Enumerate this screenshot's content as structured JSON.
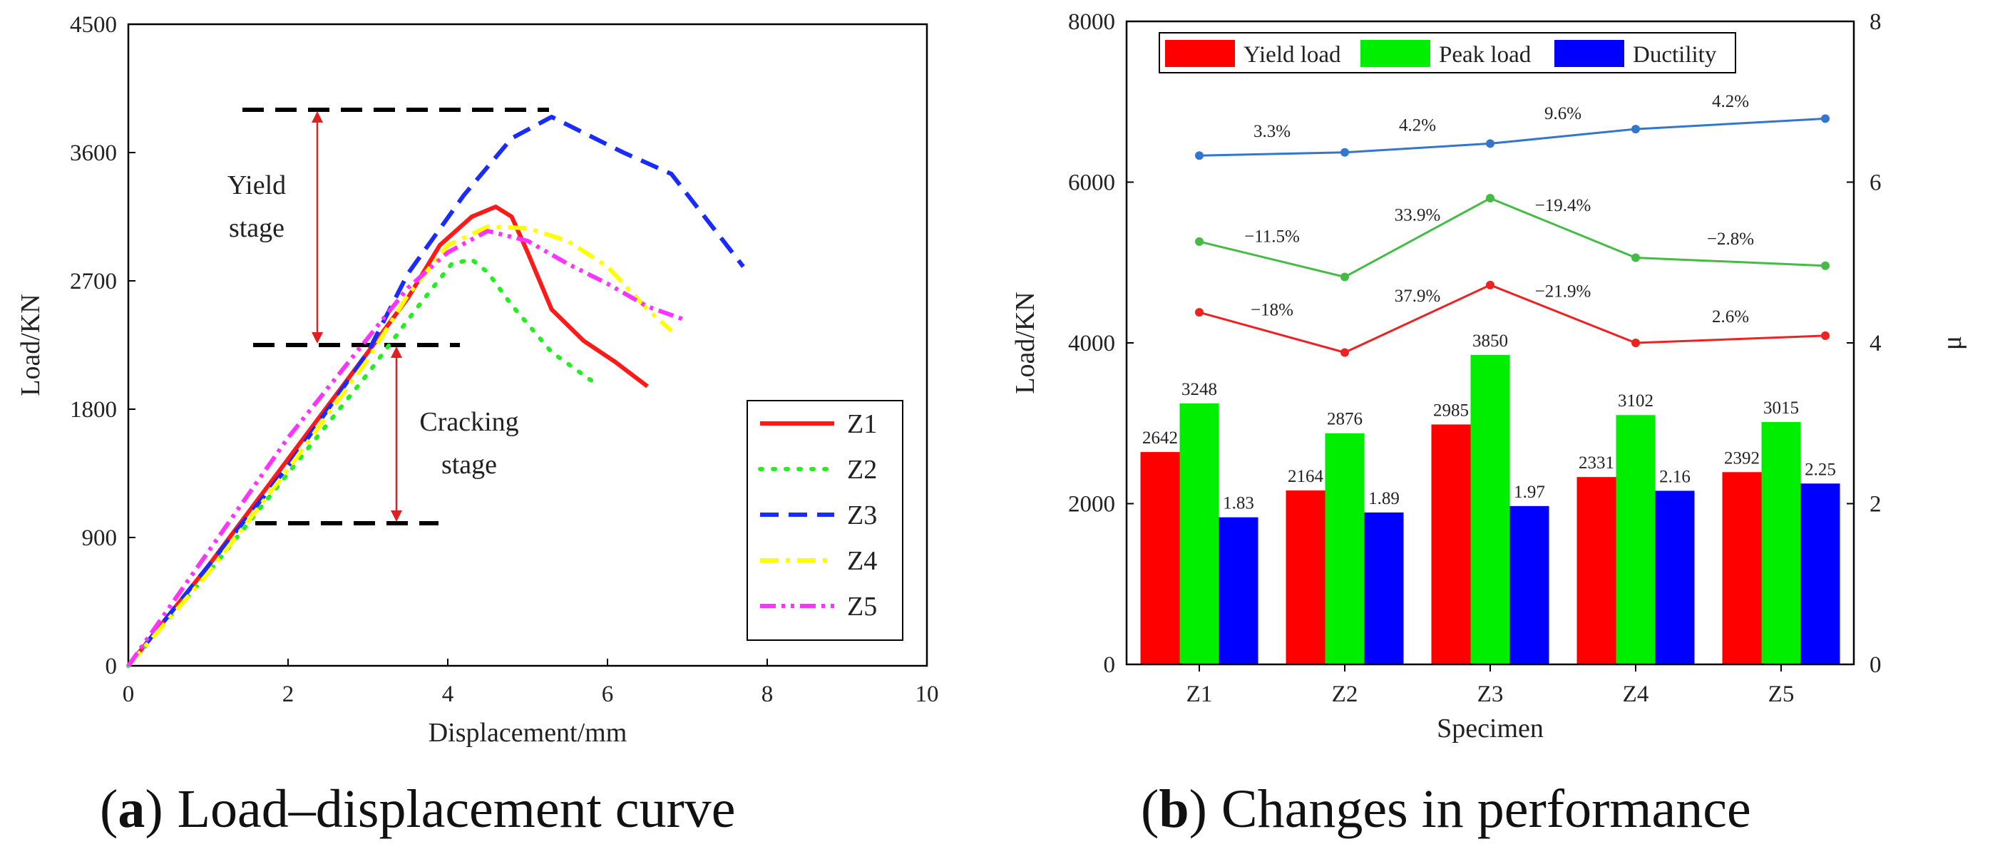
{
  "captions": {
    "a": {
      "letter": "a",
      "text": "Load–displacement curve"
    },
    "b": {
      "letter": "b",
      "text": "Changes in performance"
    }
  },
  "annotations": {
    "yield": [
      "Yield",
      "stage"
    ],
    "cracking": [
      "Cracking",
      "stage"
    ],
    "yield_top_load": 3900,
    "yield_bottom_load": 2250,
    "cracking_bottom_load": 1000
  },
  "chart_data": [
    {
      "type": "line",
      "title": "",
      "xlabel": "Displacement/mm",
      "ylabel": "Load/KN",
      "xlim": [
        0,
        10
      ],
      "ylim": [
        0,
        4500
      ],
      "xticks": [
        0,
        2,
        4,
        6,
        8,
        10
      ],
      "yticks": [
        0,
        900,
        1800,
        2700,
        3600,
        4500
      ],
      "legend_position": "bottom-right",
      "series": [
        {
          "name": "Z1",
          "color": "#ff1a1a",
          "style": "solid",
          "x": [
            0,
            1,
            2,
            3,
            3.5,
            3.9,
            4.3,
            4.6,
            4.8,
            5.0,
            5.3,
            5.7,
            6.1,
            6.5
          ],
          "y": [
            0,
            700,
            1450,
            2200,
            2580,
            2950,
            3150,
            3220,
            3150,
            2900,
            2500,
            2280,
            2130,
            1960
          ]
        },
        {
          "name": "Z2",
          "color": "#22ee22",
          "style": "dotted",
          "x": [
            0,
            1,
            2,
            3,
            3.6,
            4.05,
            4.3,
            4.5,
            4.8,
            5.3,
            5.9
          ],
          "y": [
            0,
            650,
            1350,
            2050,
            2500,
            2820,
            2850,
            2760,
            2530,
            2200,
            1960
          ]
        },
        {
          "name": "Z3",
          "color": "#1a2bff",
          "style": "dashed",
          "x": [
            0,
            1,
            2,
            3,
            3.5,
            4.2,
            4.8,
            5.3,
            6.2,
            6.8,
            7.7
          ],
          "y": [
            0,
            700,
            1400,
            2200,
            2750,
            3300,
            3700,
            3850,
            3600,
            3450,
            2800
          ]
        },
        {
          "name": "Z4",
          "color": "#ffff00",
          "style": "dashdot",
          "x": [
            0,
            1,
            2,
            3,
            3.5,
            4.0,
            4.5,
            5.0,
            5.5,
            6.0,
            6.5,
            6.8
          ],
          "y": [
            0,
            650,
            1380,
            2150,
            2600,
            2950,
            3080,
            3070,
            2980,
            2800,
            2500,
            2350
          ]
        },
        {
          "name": "Z5",
          "color": "#ff33ff",
          "style": "dashdotdot",
          "x": [
            0,
            1,
            2,
            3,
            3.5,
            4.0,
            4.5,
            5.0,
            5.5,
            6.0,
            6.5,
            7.0
          ],
          "y": [
            0,
            800,
            1600,
            2300,
            2650,
            2900,
            3050,
            2980,
            2820,
            2680,
            2520,
            2420
          ]
        }
      ]
    },
    {
      "type": "bar",
      "title": "",
      "xlabel": "Specimen",
      "ylabel": "Load/KN",
      "y2label": "μ",
      "categories": [
        "Z1",
        "Z2",
        "Z3",
        "Z4",
        "Z5"
      ],
      "ylim": [
        0,
        8000
      ],
      "yticks": [
        0,
        2000,
        4000,
        6000,
        8000
      ],
      "y2lim": [
        0,
        8
      ],
      "y2ticks": [
        0,
        2,
        4,
        6,
        8
      ],
      "legend_position": "top",
      "bar_series": [
        {
          "name": "Yield load",
          "color": "#ff0000",
          "axis": "left",
          "values": [
            2642,
            2164,
            2985,
            2331,
            2392
          ]
        },
        {
          "name": "Peak load",
          "color": "#00ee00",
          "axis": "left",
          "values": [
            3248,
            2876,
            3850,
            3102,
            3015
          ]
        },
        {
          "name": "Ductility",
          "color": "#0000ff",
          "axis": "right",
          "values": [
            1.83,
            1.89,
            1.97,
            2.16,
            2.25
          ]
        }
      ],
      "bar_labels": [
        [
          "2642",
          "2164",
          "2985",
          "2331",
          "2392"
        ],
        [
          "3248",
          "2876",
          "3850",
          "3102",
          "3015"
        ],
        [
          "1.83",
          "1.89",
          "1.97",
          "2.16",
          "2.25"
        ]
      ],
      "line_series": [
        {
          "name": "Yield load trend",
          "color": "#ee2222",
          "values": [
            4380,
            3880,
            4720,
            4000,
            4090
          ],
          "change_labels": [
            "−18%",
            "37.9%",
            "−21.9%",
            "2.6%"
          ]
        },
        {
          "name": "Peak load trend",
          "color": "#44bb44",
          "values": [
            5260,
            4820,
            5800,
            5060,
            4960
          ],
          "change_labels": [
            "−11.5%",
            "33.9%",
            "−19.4%",
            "−2.8%"
          ]
        },
        {
          "name": "Ductility trend",
          "color": "#3377cc",
          "values": [
            6330,
            6370,
            6480,
            6660,
            6790
          ],
          "change_labels": [
            "3.3%",
            "4.2%",
            "9.6%",
            "4.2%"
          ]
        }
      ]
    }
  ]
}
